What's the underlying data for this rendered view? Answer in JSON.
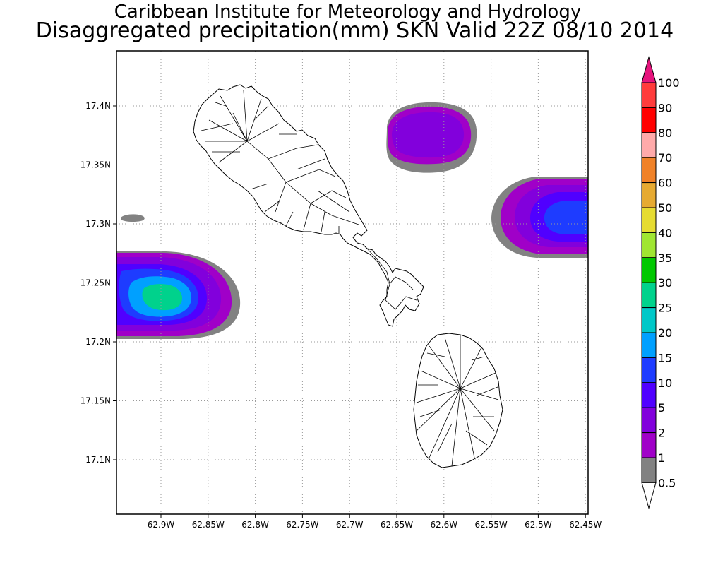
{
  "header": {
    "institute": "Caribbean Institute for Meteorology and Hydrology",
    "product": "Disaggregated precipitation(mm) SKN Valid 22Z 08/10 2014"
  },
  "map": {
    "lat_ticks": [
      "17.4N",
      "17.35N",
      "17.3N",
      "17.25N",
      "17.2N",
      "17.15N",
      "17.1N"
    ],
    "lon_ticks": [
      "62.9W",
      "62.85W",
      "62.8W",
      "62.75W",
      "62.7W",
      "62.65W",
      "62.6W",
      "62.55W",
      "62.5W",
      "62.45W"
    ],
    "grid": "dotted"
  },
  "colorbar": {
    "levels": [
      "100",
      "90",
      "80",
      "70",
      "60",
      "50",
      "40",
      "35",
      "30",
      "25",
      "20",
      "15",
      "10",
      "5",
      "2",
      "1",
      "0.5"
    ],
    "colors": {
      "above_100": "#e6147d",
      "100": "#ff3c3c",
      "90": "#ff0000",
      "80": "#ffaaaa",
      "70": "#f08228",
      "60": "#e6aa32",
      "50": "#e6dc32",
      "40": "#a0e632",
      "35": "#00c800",
      "30": "#00d28c",
      "25": "#00c8c8",
      "20": "#00a0ff",
      "15": "#1e3cff",
      "10": "#5000ff",
      "5": "#8200dc",
      "2": "#a000c8",
      "1": "#828282"
    }
  },
  "precip_cells": [
    {
      "lat": 17.38,
      "lon": -62.605,
      "peak_mm": 2
    },
    {
      "lat": 17.305,
      "lon": -62.47,
      "peak_mm": 10
    },
    {
      "lat": 17.235,
      "lon": -62.895,
      "peak_mm": 20
    },
    {
      "lat": 17.305,
      "lon": -62.925,
      "peak_mm": 0.5
    }
  ]
}
